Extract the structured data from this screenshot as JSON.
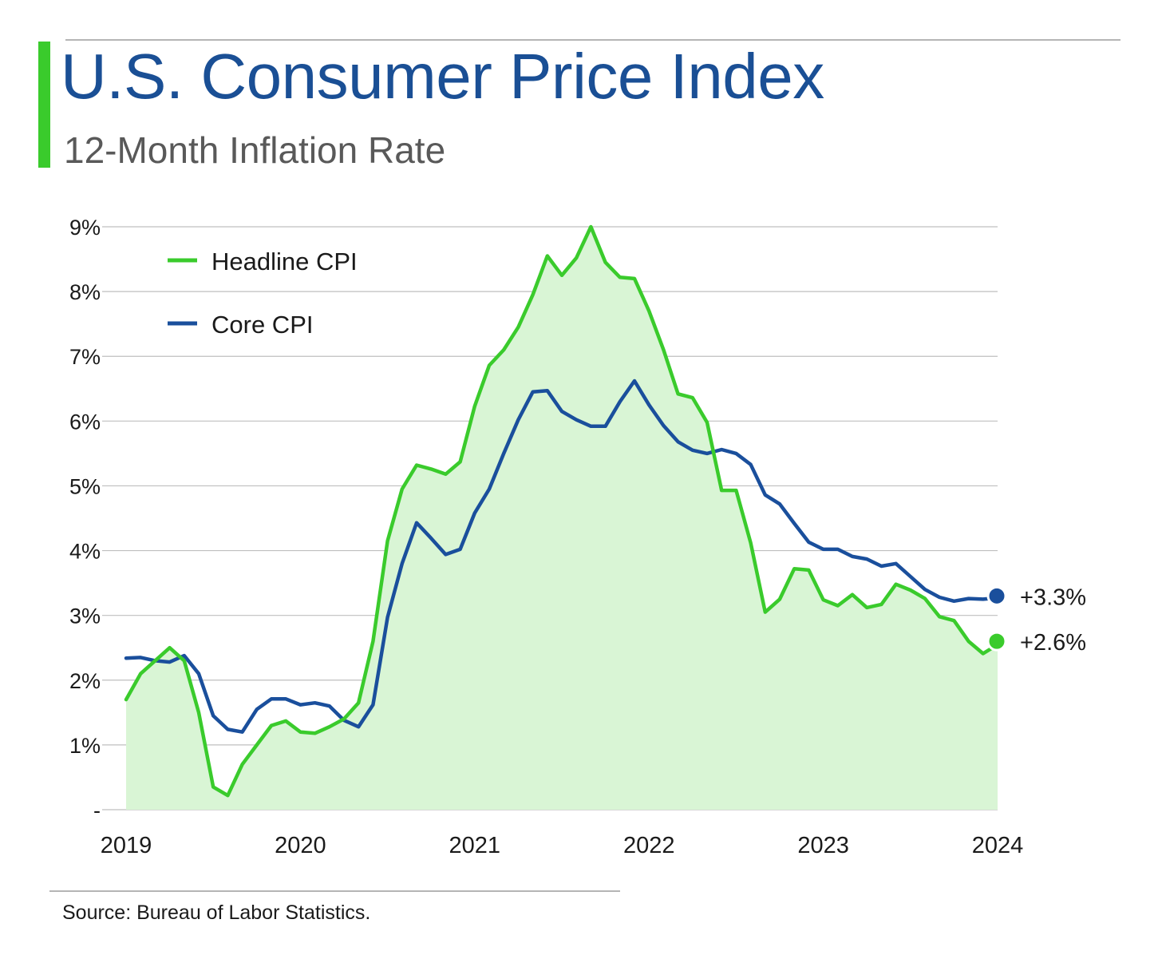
{
  "header": {
    "title": "U.S. Consumer Price Index",
    "subtitle": "12-Month Inflation Rate"
  },
  "footer": {
    "source": "Source: Bureau of Labor Statistics."
  },
  "colors": {
    "headline": "#3acb2c",
    "core": "#1a4f9c",
    "area_fill": "#d9f5d5",
    "grid": "#bfbfbf",
    "title": "#1a4f95"
  },
  "chart_data": {
    "type": "line",
    "x_start": "2019-01",
    "x_end": "2024-01",
    "x_ticks": [
      "2019",
      "2020",
      "2021",
      "2022",
      "2023",
      "2024"
    ],
    "y_ticks": [
      "-",
      "1%",
      "2%",
      "3%",
      "4%",
      "5%",
      "6%",
      "7%",
      "8%",
      "9%"
    ],
    "ylim": [
      0,
      9
    ],
    "grid": true,
    "legend_position": "top-left",
    "series": [
      {
        "name": "Headline CPI",
        "style": "line with shaded area",
        "end_label": "+2.6%",
        "end_value": 2.6,
        "values": [
          1.7,
          2.1,
          2.3,
          2.5,
          2.3,
          1.5,
          0.35,
          0.22,
          0.7,
          1.0,
          1.3,
          1.37,
          1.2,
          1.18,
          1.28,
          1.4,
          1.65,
          2.6,
          4.15,
          4.95,
          5.32,
          5.26,
          5.18,
          5.37,
          6.23,
          6.86,
          7.1,
          7.45,
          7.95,
          8.55,
          8.25,
          8.52,
          9.0,
          8.45,
          8.22,
          8.2,
          7.7,
          7.1,
          6.42,
          6.36,
          5.98,
          4.93,
          4.93,
          4.12,
          3.05,
          3.25,
          3.72,
          3.7,
          3.24,
          3.15,
          3.32,
          3.12,
          3.17,
          3.48,
          3.39,
          3.26,
          2.98,
          2.92,
          2.6,
          2.41,
          2.55
        ]
      },
      {
        "name": "Core CPI",
        "style": "line",
        "end_label": "+3.3%",
        "end_value": 3.3,
        "values": [
          2.34,
          2.35,
          2.3,
          2.28,
          2.38,
          2.1,
          1.45,
          1.24,
          1.2,
          1.55,
          1.71,
          1.71,
          1.62,
          1.65,
          1.6,
          1.38,
          1.28,
          1.62,
          2.97,
          3.8,
          4.43,
          4.19,
          3.94,
          4.02,
          4.58,
          4.95,
          5.5,
          6.02,
          6.45,
          6.47,
          6.15,
          6.02,
          5.92,
          5.92,
          6.3,
          6.62,
          6.25,
          5.93,
          5.68,
          5.55,
          5.5,
          5.56,
          5.5,
          5.33,
          4.86,
          4.72,
          4.42,
          4.13,
          4.02,
          4.02,
          3.91,
          3.87,
          3.76,
          3.8,
          3.6,
          3.4,
          3.28,
          3.22,
          3.26,
          3.25,
          3.27
        ]
      }
    ]
  }
}
